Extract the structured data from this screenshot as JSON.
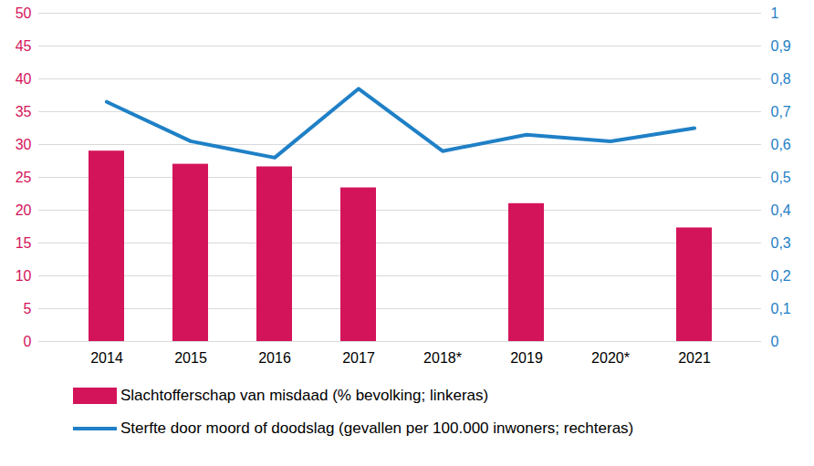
{
  "chart_data": {
    "type": "bar",
    "categories": [
      "2014",
      "2015",
      "2016",
      "2017",
      "2018*",
      "2019",
      "2020*",
      "2021"
    ],
    "series": [
      {
        "name": "Slachtofferschap van misdaad (% bevolking; linkeras)",
        "type": "bar",
        "color": "#d4145a",
        "values": [
          29,
          27,
          26.6,
          23.4,
          null,
          21,
          null,
          17.3
        ]
      },
      {
        "name": "Sterfte door moord of doodslag (gevallen per 100.000 inwoners; rechteras)",
        "type": "line",
        "axis": "y2",
        "color": "#1f80c6",
        "values": [
          0.73,
          0.61,
          0.56,
          0.77,
          0.58,
          0.63,
          0.61,
          0.65
        ]
      }
    ],
    "ylim": [
      0,
      50
    ],
    "yticks": [
      0,
      5,
      10,
      15,
      20,
      25,
      30,
      35,
      40,
      45,
      50
    ],
    "y2lim": [
      0,
      1
    ],
    "y2ticks": [
      0,
      {
        "value": 0.1,
        "label": "0,1"
      },
      {
        "value": 0.2,
        "label": "0,2"
      },
      {
        "value": 0.3,
        "label": "0,3"
      },
      {
        "value": 0.4,
        "label": "0,4"
      },
      {
        "value": 0.5,
        "label": "0,5"
      },
      {
        "value": 0.6,
        "label": "0,6"
      },
      {
        "value": 0.7,
        "label": "0,7"
      },
      {
        "value": 0.8,
        "label": "0,8"
      },
      {
        "value": 0.9,
        "label": "0,9"
      },
      1
    ],
    "grid": true,
    "legend": "bottom"
  }
}
